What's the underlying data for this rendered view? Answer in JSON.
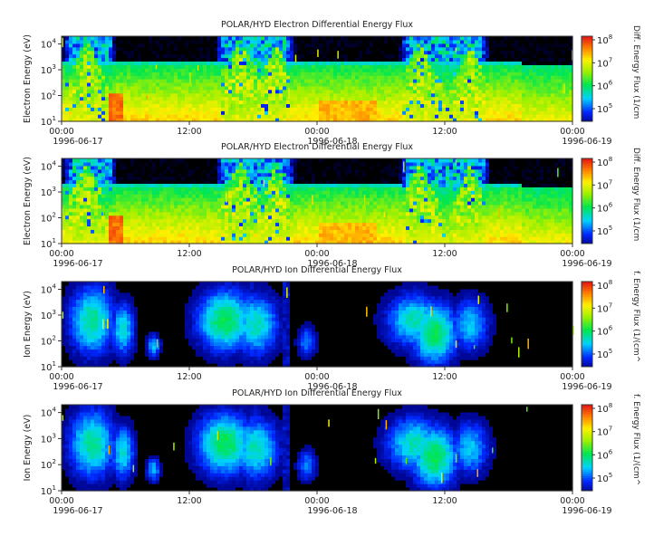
{
  "panels": [
    {
      "title": "POLAR/HYD  Electron Differential Energy Flux",
      "ylabel": "Electron Energy (eV)",
      "cbar_label": "Diff. Energy Flux (1/cm",
      "variant": "electron"
    },
    {
      "title": "POLAR/HYD  Electron Differential Energy Flux",
      "ylabel": "Electron Energy (eV)",
      "cbar_label": "Diff. Energy Flux (1/cm",
      "variant": "electron"
    },
    {
      "title": "POLAR/HYD  Ion Differential Energy Flux",
      "ylabel": "Ion Energy (eV)",
      "cbar_label": "f. Energy Flux (1/(cm^",
      "variant": "ion"
    },
    {
      "title": "POLAR/HYD  Ion Differential Energy Flux",
      "ylabel": "Ion Energy (eV)",
      "cbar_label": "f. Energy Flux (1/(cm^",
      "variant": "ion"
    }
  ],
  "axis_labels": {
    "x_times": [
      "00:00",
      "12:00",
      "00:00",
      "12:00",
      "00:00"
    ],
    "x_dates": [
      "1996-06-17",
      "1996-06-18",
      "1996-06-19"
    ],
    "y_ticks": [
      {
        "base": "10",
        "exp": "1"
      },
      {
        "base": "10",
        "exp": "2"
      },
      {
        "base": "10",
        "exp": "3"
      },
      {
        "base": "10",
        "exp": "4"
      }
    ],
    "cbar_ticks": [
      {
        "base": "10",
        "exp": "5"
      },
      {
        "base": "10",
        "exp": "6"
      },
      {
        "base": "10",
        "exp": "7"
      },
      {
        "base": "10",
        "exp": "8"
      }
    ]
  },
  "chart_data": [
    {
      "type": "heatmap",
      "title": "POLAR/HYD  Electron Differential Energy Flux",
      "ylabel": "Electron Energy (eV)",
      "x_range": [
        "1996-06-17 00:00",
        "1996-06-19 00:00"
      ],
      "x_ticks": [
        "00:00",
        "12:00",
        "00:00",
        "12:00",
        "00:00"
      ],
      "y_scale": "log",
      "y_range": [
        10,
        20000
      ],
      "colorbar": {
        "label": "Diff. Energy Flux (1/cm",
        "scale": "log",
        "range": [
          20000,
          150000000
        ]
      }
    },
    {
      "type": "heatmap",
      "title": "POLAR/HYD  Electron Differential Energy Flux",
      "ylabel": "Electron Energy (eV)",
      "x_range": [
        "1996-06-17 00:00",
        "1996-06-19 00:00"
      ],
      "x_ticks": [
        "00:00",
        "12:00",
        "00:00",
        "12:00",
        "00:00"
      ],
      "y_scale": "log",
      "y_range": [
        10,
        20000
      ],
      "colorbar": {
        "label": "Diff. Energy Flux (1/cm",
        "scale": "log",
        "range": [
          20000,
          150000000
        ]
      }
    },
    {
      "type": "heatmap",
      "title": "POLAR/HYD  Ion Differential Energy Flux",
      "ylabel": "Ion Energy (eV)",
      "x_range": [
        "1996-06-17 00:00",
        "1996-06-19 00:00"
      ],
      "x_ticks": [
        "00:00",
        "12:00",
        "00:00",
        "12:00",
        "00:00"
      ],
      "y_scale": "log",
      "y_range": [
        10,
        20000
      ],
      "colorbar": {
        "label": "f. Energy Flux (1/(cm^",
        "scale": "log",
        "range": [
          20000,
          150000000
        ]
      }
    },
    {
      "type": "heatmap",
      "title": "POLAR/HYD  Ion Differential Energy Flux",
      "ylabel": "Ion Energy (eV)",
      "x_range": [
        "1996-06-17 00:00",
        "1996-06-19 00:00"
      ],
      "x_ticks": [
        "00:00",
        "12:00",
        "00:00",
        "12:00",
        "00:00"
      ],
      "y_scale": "log",
      "y_range": [
        10,
        20000
      ],
      "colorbar": {
        "label": "f. Energy Flux (1/(cm^",
        "scale": "log",
        "range": [
          20000,
          150000000
        ]
      }
    }
  ]
}
